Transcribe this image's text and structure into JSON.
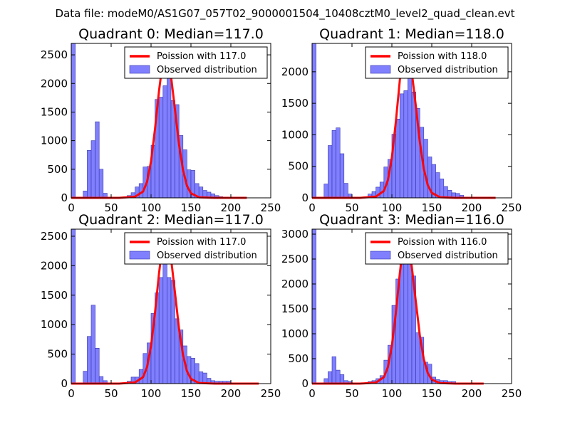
{
  "suptitle": "Data file: modeM0/AS1G07_057T02_9000001504_10408cztM0_level2_quad_clean.evt",
  "colors": {
    "bar_fill": "#8080ff",
    "bar_edge": "#3333aa",
    "fit_line": "#ff0000",
    "axis": "#000000"
  },
  "chart_data": [
    {
      "type": "bar",
      "title": "Quadrant 0: Median=117.0",
      "xlim": [
        0,
        250
      ],
      "ylim": [
        0,
        2700
      ],
      "xticks": [
        0,
        50,
        100,
        150,
        200,
        250
      ],
      "xtick_labels": [
        "0",
        "50",
        "100",
        "150",
        "200",
        "250"
      ],
      "yticks": [
        0,
        500,
        1000,
        1500,
        2000,
        2500
      ],
      "ytick_labels": [
        "0",
        "500",
        "1000",
        "1500",
        "2000",
        "2500"
      ],
      "legend": [
        "Poission with 117.0",
        "Observed distribution"
      ],
      "bin_width": 5,
      "bins": [
        0,
        5,
        10,
        15,
        20,
        25,
        30,
        35,
        40,
        45,
        50,
        55,
        60,
        65,
        70,
        75,
        80,
        85,
        90,
        95,
        100,
        105,
        110,
        115,
        120,
        125,
        130,
        135,
        140,
        145,
        150,
        155,
        160,
        165,
        170,
        175,
        180,
        185,
        190,
        195,
        200,
        205,
        210,
        215,
        220,
        225,
        230
      ],
      "counts": [
        2700,
        0,
        0,
        120,
        830,
        1000,
        1330,
        500,
        80,
        0,
        0,
        0,
        0,
        0,
        40,
        90,
        190,
        250,
        540,
        550,
        920,
        1720,
        1760,
        1960,
        2280,
        1700,
        1630,
        1090,
        840,
        490,
        480,
        250,
        190,
        130,
        100,
        70,
        40,
        20,
        0,
        0,
        0,
        0,
        0,
        0,
        0,
        0,
        0
      ],
      "poisson_lambda": 117.0,
      "fit_x": [
        0,
        60,
        80,
        90,
        95,
        100,
        105,
        110,
        115,
        117,
        120,
        125,
        130,
        135,
        140,
        145,
        150,
        160,
        180,
        220
      ],
      "fit_y": [
        0,
        0,
        20,
        110,
        280,
        640,
        1210,
        1870,
        2420,
        2550,
        2500,
        2130,
        1540,
        940,
        490,
        210,
        80,
        10,
        0,
        0
      ]
    },
    {
      "type": "bar",
      "title": "Quadrant 1: Median=118.0",
      "xlim": [
        0,
        250
      ],
      "ylim": [
        0,
        2450
      ],
      "xticks": [
        0,
        50,
        100,
        150,
        200,
        250
      ],
      "xtick_labels": [
        "0",
        "50",
        "100",
        "150",
        "200",
        "250"
      ],
      "yticks": [
        0,
        500,
        1000,
        1500,
        2000
      ],
      "ytick_labels": [
        "0",
        "500",
        "1000",
        "1500",
        "2000"
      ],
      "legend": [
        "Poission with 118.0",
        "Observed distribution"
      ],
      "bin_width": 5,
      "bins": [
        0,
        5,
        10,
        15,
        20,
        25,
        30,
        35,
        40,
        45,
        50,
        55,
        60,
        65,
        70,
        75,
        80,
        85,
        90,
        95,
        100,
        105,
        110,
        115,
        120,
        125,
        130,
        135,
        140,
        145,
        150,
        155,
        160,
        165,
        170,
        175,
        180,
        185,
        190,
        195,
        200,
        205,
        210,
        215,
        220,
        225,
        230
      ],
      "counts": [
        2450,
        0,
        0,
        220,
        830,
        1070,
        1110,
        700,
        230,
        60,
        0,
        0,
        0,
        0,
        60,
        100,
        170,
        250,
        490,
        610,
        1010,
        1250,
        1650,
        1700,
        2200,
        1680,
        1420,
        1120,
        930,
        650,
        530,
        400,
        300,
        180,
        120,
        80,
        70,
        40,
        0,
        0,
        0,
        0,
        0,
        0,
        0,
        0,
        0
      ],
      "poisson_lambda": 118.0,
      "fit_x": [
        0,
        60,
        80,
        90,
        95,
        100,
        105,
        110,
        115,
        118,
        120,
        125,
        130,
        135,
        140,
        145,
        150,
        160,
        180,
        230
      ],
      "fit_y": [
        0,
        0,
        20,
        110,
        280,
        640,
        1210,
        1870,
        2300,
        2350,
        2320,
        1990,
        1460,
        890,
        460,
        200,
        80,
        10,
        0,
        0
      ]
    },
    {
      "type": "bar",
      "title": "Quadrant 2: Median=117.0",
      "xlim": [
        0,
        250
      ],
      "ylim": [
        0,
        2620
      ],
      "xticks": [
        0,
        50,
        100,
        150,
        200,
        250
      ],
      "xtick_labels": [
        "0",
        "50",
        "100",
        "150",
        "200",
        "250"
      ],
      "yticks": [
        0,
        500,
        1000,
        1500,
        2000,
        2500
      ],
      "ytick_labels": [
        "0",
        "500",
        "1000",
        "1500",
        "2000",
        "2500"
      ],
      "legend": [
        "Poission with 117.0",
        "Observed distribution"
      ],
      "bin_width": 5,
      "bins": [
        0,
        5,
        10,
        15,
        20,
        25,
        30,
        35,
        40,
        45,
        50,
        55,
        60,
        65,
        70,
        75,
        80,
        85,
        90,
        95,
        100,
        105,
        110,
        115,
        120,
        125,
        130,
        135,
        140,
        145,
        150,
        155,
        160,
        165,
        170,
        175,
        180,
        185,
        190,
        195,
        200,
        205,
        210,
        215,
        220,
        225,
        230
      ],
      "counts": [
        2620,
        0,
        0,
        210,
        800,
        1330,
        600,
        120,
        50,
        0,
        0,
        0,
        0,
        0,
        40,
        110,
        110,
        240,
        510,
        690,
        1190,
        1540,
        1800,
        2320,
        1800,
        1750,
        1100,
        910,
        640,
        460,
        430,
        340,
        200,
        180,
        90,
        50,
        40,
        40,
        40,
        40,
        0,
        0,
        0,
        0,
        0,
        0,
        0
      ],
      "poisson_lambda": 117.0,
      "fit_x": [
        0,
        60,
        80,
        90,
        95,
        100,
        105,
        110,
        115,
        117,
        120,
        125,
        130,
        135,
        140,
        145,
        150,
        160,
        180,
        235
      ],
      "fit_y": [
        0,
        0,
        20,
        110,
        280,
        640,
        1210,
        1870,
        2420,
        2500,
        2480,
        2130,
        1540,
        940,
        490,
        210,
        80,
        10,
        0,
        0
      ]
    },
    {
      "type": "bar",
      "title": "Quadrant 3: Median=116.0",
      "xlim": [
        0,
        250
      ],
      "ylim": [
        0,
        3100
      ],
      "xticks": [
        0,
        50,
        100,
        150,
        200,
        250
      ],
      "xtick_labels": [
        "0",
        "50",
        "100",
        "150",
        "200",
        "250"
      ],
      "yticks": [
        0,
        500,
        1000,
        1500,
        2000,
        2500,
        3000
      ],
      "ytick_labels": [
        "0",
        "500",
        "1000",
        "1500",
        "2000",
        "2500",
        "3000"
      ],
      "legend": [
        "Poission with 116.0",
        "Observed distribution"
      ],
      "bin_width": 5,
      "bins": [
        0,
        5,
        10,
        15,
        20,
        25,
        30,
        35,
        40,
        45,
        50,
        55,
        60,
        65,
        70,
        75,
        80,
        85,
        90,
        95,
        100,
        105,
        110,
        115,
        120,
        125,
        130,
        135,
        140,
        145,
        150,
        155,
        160,
        165,
        170,
        175,
        180,
        185,
        190,
        195,
        200,
        205,
        210,
        215,
        220,
        225,
        230
      ],
      "counts": [
        3100,
        0,
        0,
        100,
        240,
        540,
        270,
        180,
        60,
        40,
        0,
        0,
        0,
        0,
        40,
        60,
        100,
        160,
        470,
        770,
        1570,
        2100,
        2790,
        2950,
        2490,
        2160,
        1020,
        930,
        430,
        390,
        130,
        80,
        60,
        60,
        40,
        40,
        0,
        0,
        0,
        0,
        0,
        0,
        0,
        0,
        0,
        0,
        0
      ],
      "poisson_lambda": 116.0,
      "fit_x": [
        0,
        60,
        80,
        90,
        95,
        100,
        105,
        110,
        115,
        116,
        120,
        125,
        130,
        135,
        140,
        145,
        150,
        160,
        180,
        215
      ],
      "fit_y": [
        0,
        0,
        20,
        130,
        330,
        760,
        1420,
        2220,
        2860,
        2940,
        2860,
        2340,
        1650,
        970,
        490,
        210,
        80,
        10,
        0,
        0
      ]
    }
  ]
}
